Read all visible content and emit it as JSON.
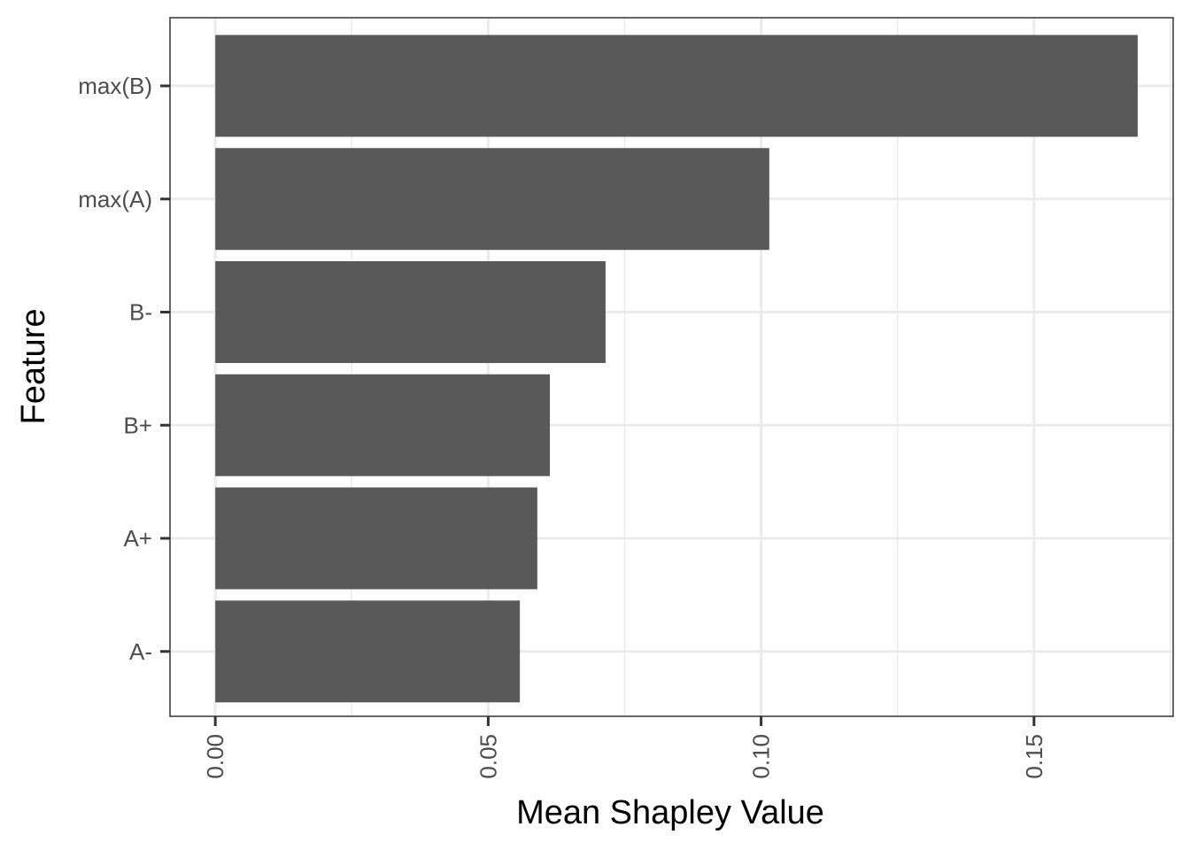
{
  "chart_data": {
    "type": "bar",
    "orientation": "horizontal",
    "title": "",
    "xlabel": "Mean Shapley Value",
    "ylabel": "Feature",
    "categories": [
      "max(B)",
      "max(A)",
      "B-",
      "B+",
      "A+",
      "A-"
    ],
    "values": [
      0.169,
      0.1015,
      0.0715,
      0.0613,
      0.059,
      0.0558
    ],
    "xlim": [
      -0.0083,
      0.1755
    ],
    "xticks": [
      {
        "value": 0,
        "label": "0.00"
      },
      {
        "value": 0.05,
        "label": "0.05"
      },
      {
        "value": 0.1,
        "label": "0.10"
      },
      {
        "value": 0.15,
        "label": "0.15"
      }
    ],
    "x_minor_ticks": [
      0.025,
      0.075,
      0.125,
      0.175
    ],
    "grid": true,
    "legend": "none",
    "colors": {
      "bar": "#595959",
      "grid": "#ebebeb",
      "panel_border": "#333333",
      "tick_text": "#4d4d4d",
      "axis_title": "#000000"
    }
  }
}
